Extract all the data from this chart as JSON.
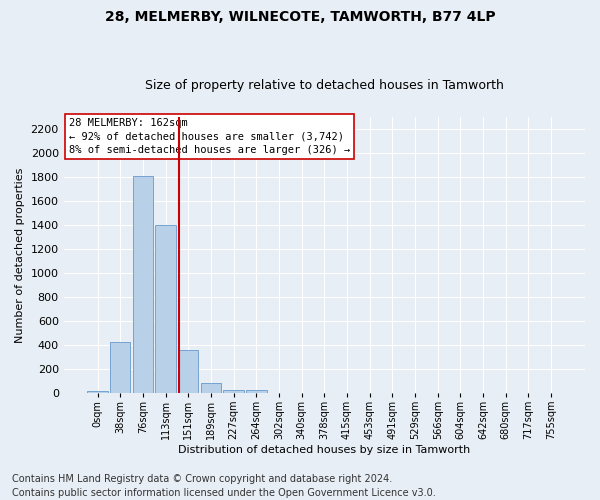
{
  "title": "28, MELMERBY, WILNECOTE, TAMWORTH, B77 4LP",
  "subtitle": "Size of property relative to detached houses in Tamworth",
  "xlabel": "Distribution of detached houses by size in Tamworth",
  "ylabel": "Number of detached properties",
  "bar_labels": [
    "0sqm",
    "38sqm",
    "76sqm",
    "113sqm",
    "151sqm",
    "189sqm",
    "227sqm",
    "264sqm",
    "302sqm",
    "340sqm",
    "378sqm",
    "415sqm",
    "453sqm",
    "491sqm",
    "529sqm",
    "566sqm",
    "604sqm",
    "642sqm",
    "680sqm",
    "717sqm",
    "755sqm"
  ],
  "bar_values": [
    18,
    425,
    1810,
    1400,
    355,
    80,
    28,
    22,
    0,
    0,
    0,
    0,
    0,
    0,
    0,
    0,
    0,
    0,
    0,
    0,
    0
  ],
  "bar_color": "#b8d0e8",
  "bar_edge_color": "#6699cc",
  "background_color": "#e8eef5",
  "grid_color": "#ffffff",
  "vline_color": "#cc0000",
  "annotation_text": "28 MELMERBY: 162sqm\n← 92% of detached houses are smaller (3,742)\n8% of semi-detached houses are larger (326) →",
  "annotation_box_color": "#ffffff",
  "annotation_box_edge_color": "#cc0000",
  "ylim": [
    0,
    2300
  ],
  "yticks": [
    0,
    200,
    400,
    600,
    800,
    1000,
    1200,
    1400,
    1600,
    1800,
    2000,
    2200
  ],
  "footer": "Contains HM Land Registry data © Crown copyright and database right 2024.\nContains public sector information licensed under the Open Government Licence v3.0.",
  "title_fontsize": 10,
  "subtitle_fontsize": 9,
  "annotation_fontsize": 7.5,
  "footer_fontsize": 7,
  "ylabel_fontsize": 8,
  "xlabel_fontsize": 8
}
